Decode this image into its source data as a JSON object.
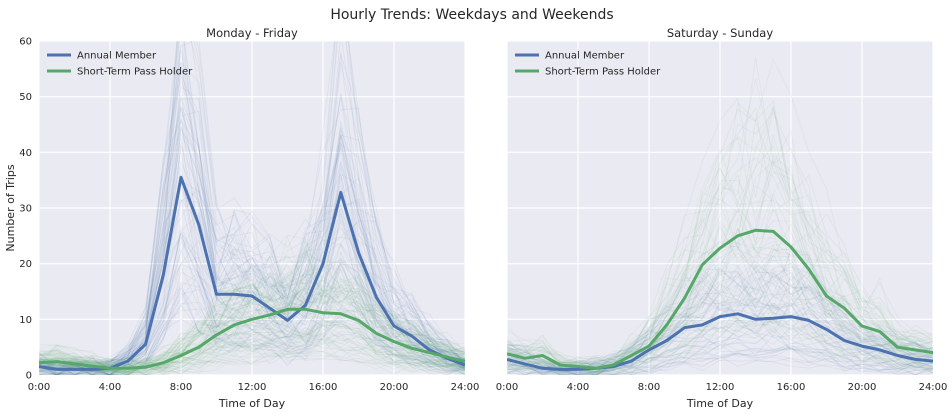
{
  "figure_title": "Hourly Trends: Weekdays and Weekends",
  "colors": {
    "panel_bg": "#eaeaf2",
    "grid": "#ffffff",
    "annual_member": "#4c72b0",
    "short_term": "#55a868",
    "text": "#262626"
  },
  "chart_data": [
    {
      "type": "line",
      "title": "Monday - Friday",
      "xlabel": "Time of Day",
      "ylabel": "Number of Trips",
      "xlim": [
        0,
        24
      ],
      "ylim": [
        0,
        60
      ],
      "grid": true,
      "legend_position": "top-left",
      "x_ticks": [
        0,
        4,
        8,
        12,
        16,
        20,
        24
      ],
      "x_tick_labels": [
        "0:00",
        "4:00",
        "8:00",
        "12:00",
        "16:00",
        "20:00",
        "24:00"
      ],
      "y_ticks": [
        0,
        10,
        20,
        30,
        40,
        50,
        60
      ],
      "y_tick_labels": [
        "0",
        "10",
        "20",
        "30",
        "40",
        "50",
        "60"
      ],
      "x": [
        0,
        1,
        2,
        3,
        4,
        5,
        6,
        7,
        8,
        9,
        10,
        11,
        12,
        13,
        14,
        15,
        16,
        17,
        18,
        19,
        20,
        21,
        22,
        23,
        24
      ],
      "series": [
        {
          "name": "Annual Member",
          "values": [
            1.5,
            1.0,
            1.0,
            1.0,
            1.2,
            2.5,
            5.5,
            18.0,
            35.5,
            27.0,
            14.5,
            14.5,
            14.2,
            12.0,
            9.8,
            12.5,
            20.0,
            32.8,
            22.0,
            14.0,
            8.8,
            7.0,
            4.5,
            3.0,
            1.8
          ]
        },
        {
          "name": "Short-Term Pass Holder",
          "values": [
            2.2,
            2.4,
            2.0,
            1.6,
            1.2,
            1.2,
            1.4,
            2.2,
            3.5,
            5.0,
            7.2,
            9.0,
            10.0,
            10.8,
            11.8,
            11.8,
            11.2,
            11.0,
            9.8,
            7.5,
            6.0,
            4.8,
            4.0,
            3.2,
            2.4
          ]
        }
      ]
    },
    {
      "type": "line",
      "title": "Saturday - Sunday",
      "xlabel": "Time of Day",
      "xlim": [
        0,
        24
      ],
      "ylim": [
        0,
        60
      ],
      "grid": true,
      "legend_position": "top-left",
      "x_ticks": [
        0,
        4,
        8,
        12,
        16,
        20,
        24
      ],
      "x_tick_labels": [
        "0:00",
        "4:00",
        "8:00",
        "12:00",
        "16:00",
        "20:00",
        "24:00"
      ],
      "x": [
        0,
        1,
        2,
        3,
        4,
        5,
        6,
        7,
        8,
        9,
        10,
        11,
        12,
        13,
        14,
        15,
        16,
        17,
        18,
        19,
        20,
        21,
        22,
        23,
        24
      ],
      "series": [
        {
          "name": "Annual Member",
          "values": [
            2.8,
            2.0,
            1.2,
            1.0,
            1.0,
            1.2,
            1.5,
            2.5,
            4.5,
            6.2,
            8.5,
            9.0,
            10.5,
            11.0,
            10.0,
            10.2,
            10.5,
            9.8,
            8.2,
            6.2,
            5.2,
            4.5,
            3.5,
            2.8,
            2.5
          ]
        },
        {
          "name": "Short-Term Pass Holder",
          "values": [
            3.8,
            3.0,
            3.5,
            1.8,
            1.5,
            1.2,
            1.8,
            3.5,
            5.2,
            9.0,
            13.8,
            19.8,
            22.8,
            25.0,
            26.0,
            25.8,
            23.0,
            19.0,
            14.2,
            12.0,
            8.8,
            7.8,
            5.0,
            4.5,
            4.0
          ]
        }
      ]
    }
  ]
}
